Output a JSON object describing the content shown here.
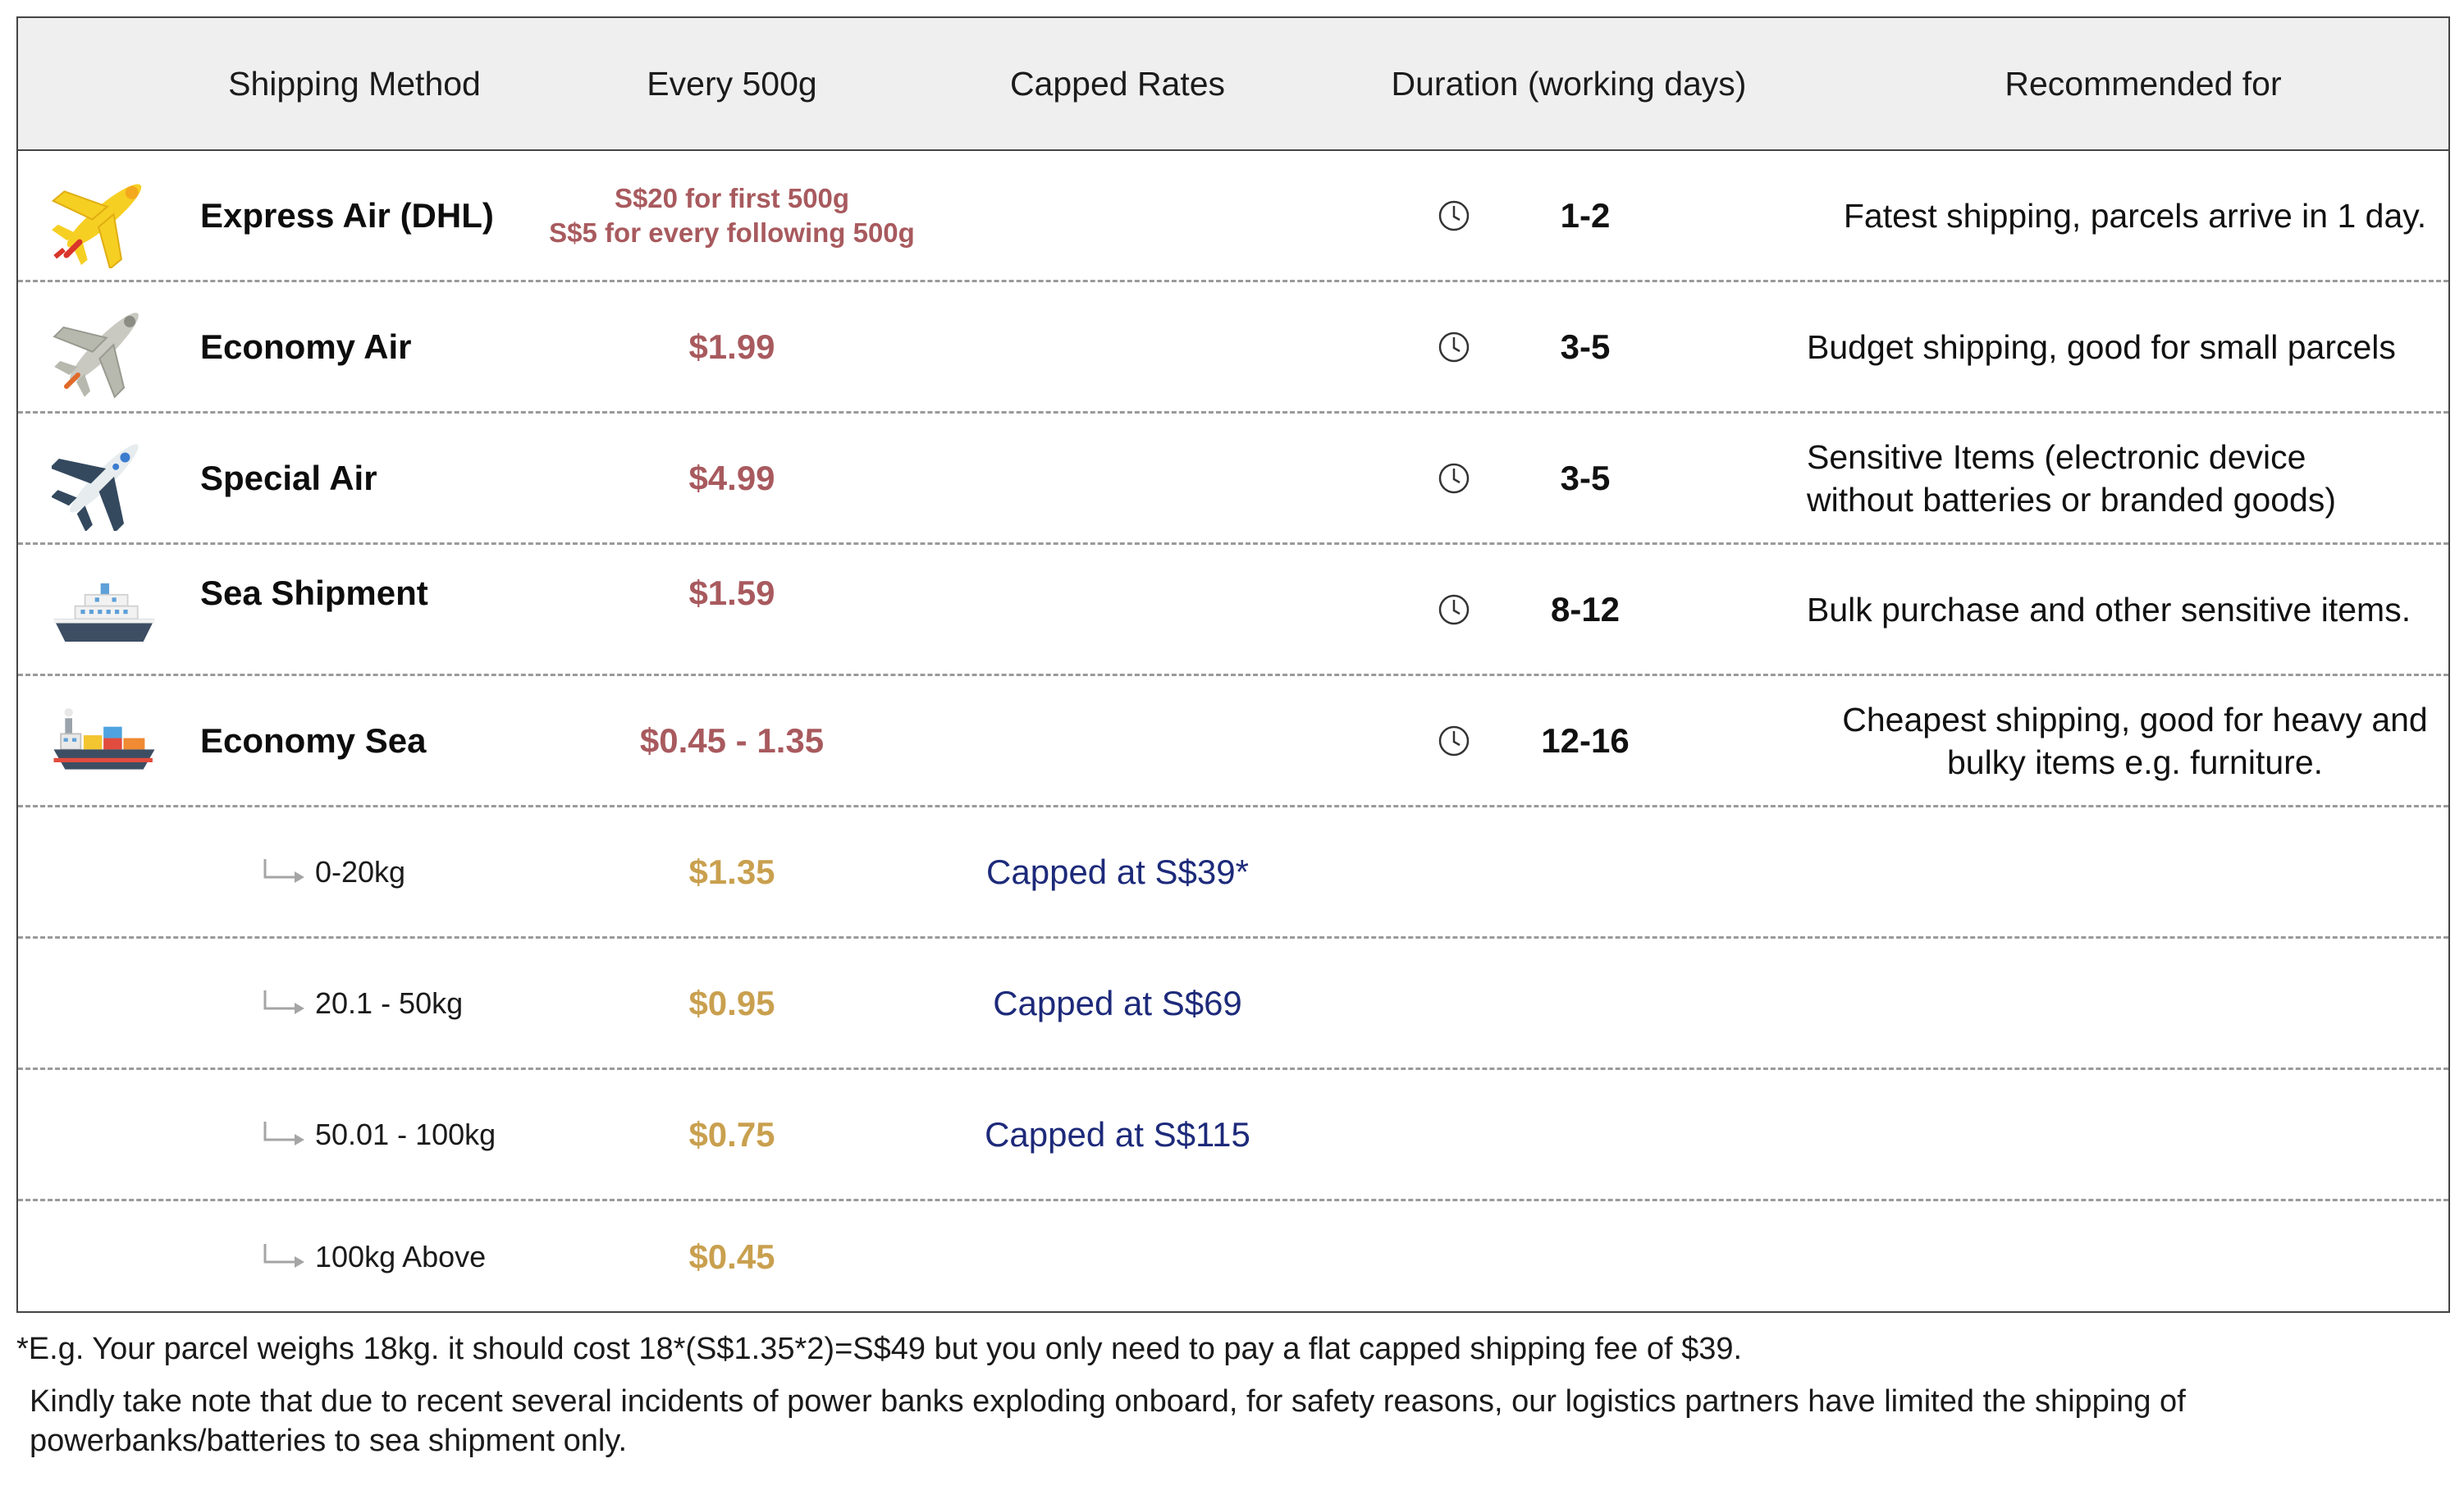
{
  "header": {
    "method": "Shipping Method",
    "every": "Every 500g",
    "capped": "Capped Rates",
    "duration": "Duration (working days)",
    "recommended": "Recommended for"
  },
  "rows": [
    {
      "name": "Express Air (DHL)",
      "price_line1": "S$20 for first 500g",
      "price_line2": "S$5 for every following 500g",
      "duration": "1-2",
      "recommended": "Fatest shipping, parcels arrive in 1 day.",
      "icon": "yellow-airplane-icon"
    },
    {
      "name": "Economy Air",
      "price": "$1.99",
      "duration": "3-5",
      "recommended": "Budget shipping, good for small parcels",
      "icon": "grey-airplane-icon"
    },
    {
      "name": "Special Air",
      "price": "$4.99",
      "duration": "3-5",
      "recommended_line1": "Sensitive Items (electronic device",
      "recommended_line2": "without batteries or branded goods)",
      "icon": "jet-airplane-icon"
    },
    {
      "name": "Sea Shipment",
      "price": "$1.59",
      "duration": "8-12",
      "recommended": "Bulk purchase and other sensitive items.",
      "icon": "cruise-ship-icon"
    },
    {
      "name": "Economy Sea",
      "price": "$0.45 - 1.35",
      "duration": "12-16",
      "recommended_line1": "Cheapest shipping, good for heavy and",
      "recommended_line2": "bulky items e.g. furniture.",
      "icon": "cargo-ship-icon"
    }
  ],
  "subrows": [
    {
      "label": "0-20kg",
      "price": "$1.35",
      "cap": "Capped at S$39*"
    },
    {
      "label": "20.1 - 50kg",
      "price": "$0.95",
      "cap": "Capped at S$69"
    },
    {
      "label": "50.01 - 100kg",
      "price": "$0.75",
      "cap": "Capped at S$115"
    },
    {
      "label": "100kg Above",
      "price": "$0.45",
      "cap": ""
    }
  ],
  "footnote": "*E.g. Your parcel weighs 18kg. it should cost 18*(S$1.35*2)=S$49 but you only need to pay a flat capped shipping fee of $39.",
  "notice_line1": "Kindly take note that due to recent several incidents of power banks exploding onboard, for safety reasons, our logistics partners have limited the shipping of",
  "notice_line2": "powerbanks/batteries to sea shipment only.",
  "colors": {
    "header_bg": "#efefef",
    "price_red": "#a85a5e",
    "price_gold": "#c9a04f",
    "cap_navy": "#1d2a7a",
    "divider": "#9a9a9a"
  }
}
